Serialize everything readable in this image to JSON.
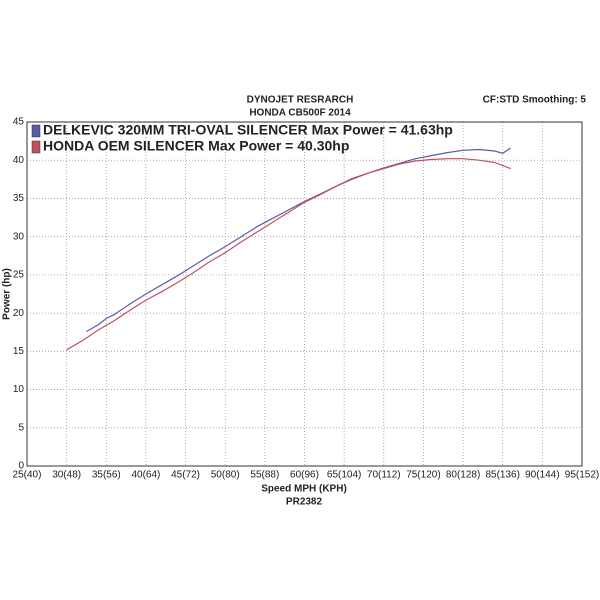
{
  "chart_data": {
    "type": "line",
    "title": "DYNOJET RESRARCH",
    "subtitle": "HONDA CB500F 2014",
    "annotation": "CF:STD Smoothing: 5",
    "x_label": "Speed MPH (KPH)",
    "y_label": "Power (hp)",
    "caption": "PR2382",
    "xlim": [
      25,
      95
    ],
    "ylim": [
      0,
      45
    ],
    "xticks": [
      {
        "value": 25,
        "label": "25(40)"
      },
      {
        "value": 30,
        "label": "30(48)"
      },
      {
        "value": 35,
        "label": "35(56)"
      },
      {
        "value": 40,
        "label": "40(64)"
      },
      {
        "value": 45,
        "label": "45(72)"
      },
      {
        "value": 50,
        "label": "50(80)"
      },
      {
        "value": 55,
        "label": "55(88)"
      },
      {
        "value": 60,
        "label": "60(96)"
      },
      {
        "value": 65,
        "label": "65(104)"
      },
      {
        "value": 70,
        "label": "70(112)"
      },
      {
        "value": 75,
        "label": "75(120)"
      },
      {
        "value": 80,
        "label": "80(128)"
      },
      {
        "value": 85,
        "label": "85(136)"
      },
      {
        "value": 90,
        "label": "90(144)"
      },
      {
        "value": 95,
        "label": "95(152)"
      }
    ],
    "yticks": [
      0,
      5,
      10,
      15,
      20,
      25,
      30,
      35,
      40,
      45
    ],
    "grid": true,
    "legend": "top-left",
    "series": [
      {
        "name": "DELKEVIC 320MM TRI-OVAL SILENCER  Max Power = 41.63hp",
        "color": "#5a5aa8",
        "x": [
          32.5,
          34,
          35,
          36,
          38,
          40,
          42,
          44,
          46,
          48,
          50,
          52,
          54,
          56,
          58,
          60,
          62,
          64,
          66,
          68,
          70,
          72,
          74,
          76,
          78,
          80,
          82,
          84,
          85,
          86
        ],
        "values": [
          17.6,
          18.5,
          19.3,
          19.8,
          21.2,
          22.5,
          23.7,
          24.9,
          26.2,
          27.5,
          28.7,
          30.0,
          31.3,
          32.4,
          33.5,
          34.6,
          35.6,
          36.6,
          37.6,
          38.3,
          39.0,
          39.6,
          40.2,
          40.6,
          41.0,
          41.3,
          41.4,
          41.2,
          40.9,
          41.6
        ]
      },
      {
        "name": "HONDA OEM SILENCER Max Power = 40.30hp",
        "color": "#c05060",
        "x": [
          30,
          32,
          34,
          36,
          38,
          40,
          42,
          44,
          46,
          48,
          50,
          52,
          54,
          56,
          58,
          60,
          62,
          64,
          66,
          68,
          70,
          72,
          74,
          76,
          78,
          80,
          82,
          84,
          86
        ],
        "values": [
          15.2,
          16.4,
          17.8,
          19.0,
          20.4,
          21.7,
          22.8,
          24.0,
          25.3,
          26.7,
          27.9,
          29.3,
          30.6,
          31.9,
          33.2,
          34.5,
          35.5,
          36.6,
          37.5,
          38.3,
          38.9,
          39.5,
          39.9,
          40.1,
          40.2,
          40.2,
          40.0,
          39.7,
          38.9
        ]
      }
    ]
  }
}
